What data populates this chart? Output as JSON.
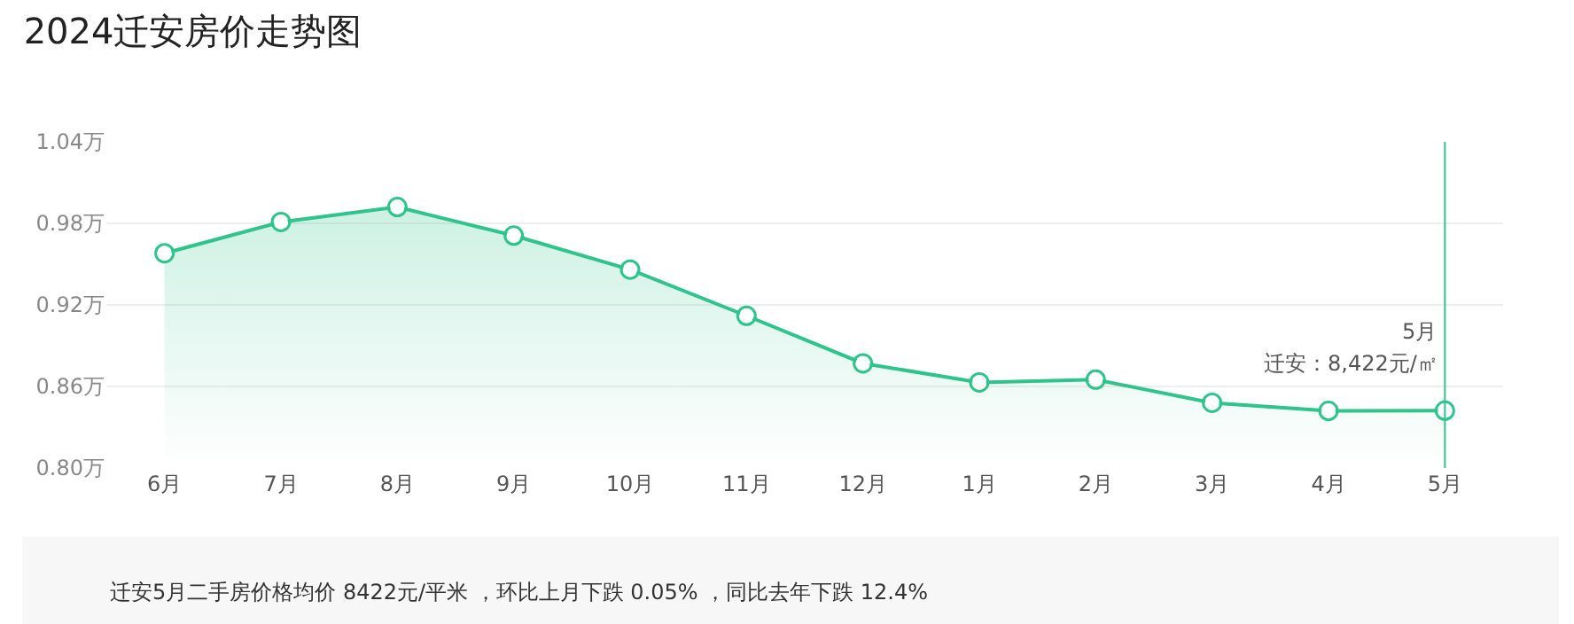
{
  "chart_data": {
    "type": "area",
    "title": "2024迁安房价走势图",
    "categories": [
      "6月",
      "7月",
      "8月",
      "9月",
      "10月",
      "11月",
      "12月",
      "1月",
      "2月",
      "3月",
      "4月",
      "5月"
    ],
    "series": [
      {
        "color": "#2ec48c",
        "values": [
          0.958,
          0.981,
          0.992,
          0.971,
          0.946,
          0.912,
          0.877,
          0.863,
          0.865,
          0.848,
          0.842,
          0.8422
        ]
      }
    ],
    "ylim": [
      0.8,
      1.04
    ],
    "yticks": [
      {
        "value": 0.8,
        "label": "0.80万"
      },
      {
        "value": 0.86,
        "label": "0.86万"
      },
      {
        "value": 0.92,
        "label": "0.92万"
      },
      {
        "value": 0.98,
        "label": "0.98万"
      },
      {
        "value": 1.04,
        "label": "1.04万"
      }
    ],
    "grid": "y",
    "marker": "circle",
    "legend": false,
    "ref_lines": [
      {
        "axis": "x",
        "value": "5月",
        "color": "#2ec48c"
      }
    ],
    "annotations": [
      "5月",
      "迁安：8,422元/㎡",
      "迁安5月二手房价格均价 8422元/平米 ，环比上月下跌 0.05% ，同比去年下跌 12.4%"
    ]
  }
}
